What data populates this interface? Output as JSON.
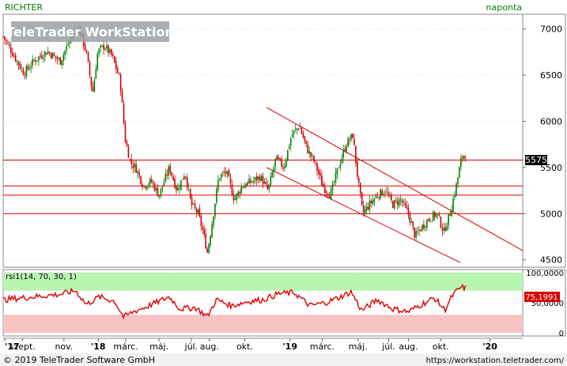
{
  "instrument": "RICHTER",
  "period": "naponta",
  "watermark": "TeleTrader WorkStation",
  "footer": {
    "copyright": "© 2019 TeleTrader Software GmbH",
    "url": "https://workstation.teletrader.com/"
  },
  "colors": {
    "up_candle": "#008000",
    "down_candle": "#cc0000",
    "lines": "#dd0000",
    "rsi_line": "#dd0000",
    "overbought_band": "#b8f5b0",
    "oversold_band": "#f7c3c3",
    "panel_bg": "#ffffff",
    "label_green": "#008000"
  },
  "chart_data": [
    {
      "type": "candlestick",
      "ylim": [
        4420,
        7160
      ],
      "yticks": [
        "7000",
        "6500",
        "6000",
        "5500",
        "5000",
        "4500"
      ],
      "last_value_label": "5575",
      "last_value": 5575,
      "x_labels": [
        "'17",
        "szept.",
        "nov.",
        "'18",
        "márc.",
        "máj.",
        "júl.",
        "aug.",
        "okt.",
        "'19",
        "márc.",
        "máj.",
        "júl.",
        "aug.",
        "okt.",
        "'20"
      ],
      "path": [
        {
          "t": 0.0,
          "v": 6920
        },
        {
          "t": 0.02,
          "v": 6720
        },
        {
          "t": 0.04,
          "v": 6520
        },
        {
          "t": 0.06,
          "v": 6660
        },
        {
          "t": 0.085,
          "v": 6760
        },
        {
          "t": 0.11,
          "v": 6650
        },
        {
          "t": 0.13,
          "v": 6900
        },
        {
          "t": 0.145,
          "v": 7020
        },
        {
          "t": 0.16,
          "v": 6750
        },
        {
          "t": 0.172,
          "v": 6300
        },
        {
          "t": 0.182,
          "v": 6750
        },
        {
          "t": 0.195,
          "v": 6820
        },
        {
          "t": 0.21,
          "v": 6700
        },
        {
          "t": 0.225,
          "v": 6450
        },
        {
          "t": 0.235,
          "v": 5800
        },
        {
          "t": 0.245,
          "v": 5550
        },
        {
          "t": 0.255,
          "v": 5500
        },
        {
          "t": 0.27,
          "v": 5300
        },
        {
          "t": 0.285,
          "v": 5350
        },
        {
          "t": 0.3,
          "v": 5200
        },
        {
          "t": 0.32,
          "v": 5500
        },
        {
          "t": 0.335,
          "v": 5250
        },
        {
          "t": 0.35,
          "v": 5450
        },
        {
          "t": 0.362,
          "v": 5100
        },
        {
          "t": 0.375,
          "v": 5000
        },
        {
          "t": 0.385,
          "v": 4800
        },
        {
          "t": 0.393,
          "v": 4580
        },
        {
          "t": 0.402,
          "v": 4900
        },
        {
          "t": 0.415,
          "v": 5400
        },
        {
          "t": 0.43,
          "v": 5450
        },
        {
          "t": 0.445,
          "v": 5150
        },
        {
          "t": 0.46,
          "v": 5300
        },
        {
          "t": 0.48,
          "v": 5350
        },
        {
          "t": 0.495,
          "v": 5400
        },
        {
          "t": 0.51,
          "v": 5250
        },
        {
          "t": 0.525,
          "v": 5600
        },
        {
          "t": 0.54,
          "v": 5500
        },
        {
          "t": 0.555,
          "v": 5850
        },
        {
          "t": 0.57,
          "v": 5950
        },
        {
          "t": 0.585,
          "v": 5700
        },
        {
          "t": 0.6,
          "v": 5550
        },
        {
          "t": 0.615,
          "v": 5300
        },
        {
          "t": 0.63,
          "v": 5200
        },
        {
          "t": 0.645,
          "v": 5500
        },
        {
          "t": 0.66,
          "v": 5750
        },
        {
          "t": 0.673,
          "v": 5850
        },
        {
          "t": 0.682,
          "v": 5400
        },
        {
          "t": 0.692,
          "v": 5000
        },
        {
          "t": 0.705,
          "v": 5100
        },
        {
          "t": 0.72,
          "v": 5200
        },
        {
          "t": 0.735,
          "v": 5250
        },
        {
          "t": 0.75,
          "v": 5100
        },
        {
          "t": 0.765,
          "v": 5150
        },
        {
          "t": 0.78,
          "v": 5000
        },
        {
          "t": 0.793,
          "v": 4750
        },
        {
          "t": 0.805,
          "v": 4850
        },
        {
          "t": 0.82,
          "v": 4950
        },
        {
          "t": 0.835,
          "v": 5000
        },
        {
          "t": 0.848,
          "v": 4800
        },
        {
          "t": 0.86,
          "v": 5000
        },
        {
          "t": 0.872,
          "v": 5300
        },
        {
          "t": 0.882,
          "v": 5600
        },
        {
          "t": 0.89,
          "v": 5650
        }
      ],
      "horizontal_lines": [
        5580,
        5300,
        5200,
        5000
      ],
      "trend_channel": [
        {
          "start": {
            "t": 0.507,
            "v": 6150
          },
          "end": {
            "t": 1.0,
            "v": 4600
          }
        },
        {
          "start": {
            "t": 0.507,
            "v": 5500
          },
          "end": {
            "t": 0.88,
            "v": 4470
          }
        }
      ]
    },
    {
      "type": "line",
      "title": "rsi1(14, 70, 30, 1)",
      "ylim": [
        -5,
        105
      ],
      "yticks": [
        "100,0000",
        "50,0000",
        "0"
      ],
      "overbought": 70,
      "oversold": 30,
      "last_value_label": "75,1991",
      "last_value": 75.1991,
      "path": [
        {
          "t": 0.0,
          "v": 55
        },
        {
          "t": 0.06,
          "v": 60
        },
        {
          "t": 0.11,
          "v": 64
        },
        {
          "t": 0.14,
          "v": 70
        },
        {
          "t": 0.16,
          "v": 47
        },
        {
          "t": 0.185,
          "v": 60
        },
        {
          "t": 0.215,
          "v": 52
        },
        {
          "t": 0.232,
          "v": 26
        },
        {
          "t": 0.25,
          "v": 35
        },
        {
          "t": 0.28,
          "v": 45
        },
        {
          "t": 0.32,
          "v": 60
        },
        {
          "t": 0.34,
          "v": 40
        },
        {
          "t": 0.37,
          "v": 42
        },
        {
          "t": 0.393,
          "v": 27
        },
        {
          "t": 0.41,
          "v": 55
        },
        {
          "t": 0.44,
          "v": 45
        },
        {
          "t": 0.47,
          "v": 52
        },
        {
          "t": 0.5,
          "v": 55
        },
        {
          "t": 0.53,
          "v": 65
        },
        {
          "t": 0.56,
          "v": 67
        },
        {
          "t": 0.59,
          "v": 45
        },
        {
          "t": 0.62,
          "v": 50
        },
        {
          "t": 0.65,
          "v": 60
        },
        {
          "t": 0.67,
          "v": 68
        },
        {
          "t": 0.69,
          "v": 37
        },
        {
          "t": 0.72,
          "v": 55
        },
        {
          "t": 0.75,
          "v": 40
        },
        {
          "t": 0.78,
          "v": 35
        },
        {
          "t": 0.8,
          "v": 45
        },
        {
          "t": 0.83,
          "v": 58
        },
        {
          "t": 0.85,
          "v": 38
        },
        {
          "t": 0.865,
          "v": 62
        },
        {
          "t": 0.88,
          "v": 75
        },
        {
          "t": 0.89,
          "v": 75
        }
      ]
    }
  ]
}
